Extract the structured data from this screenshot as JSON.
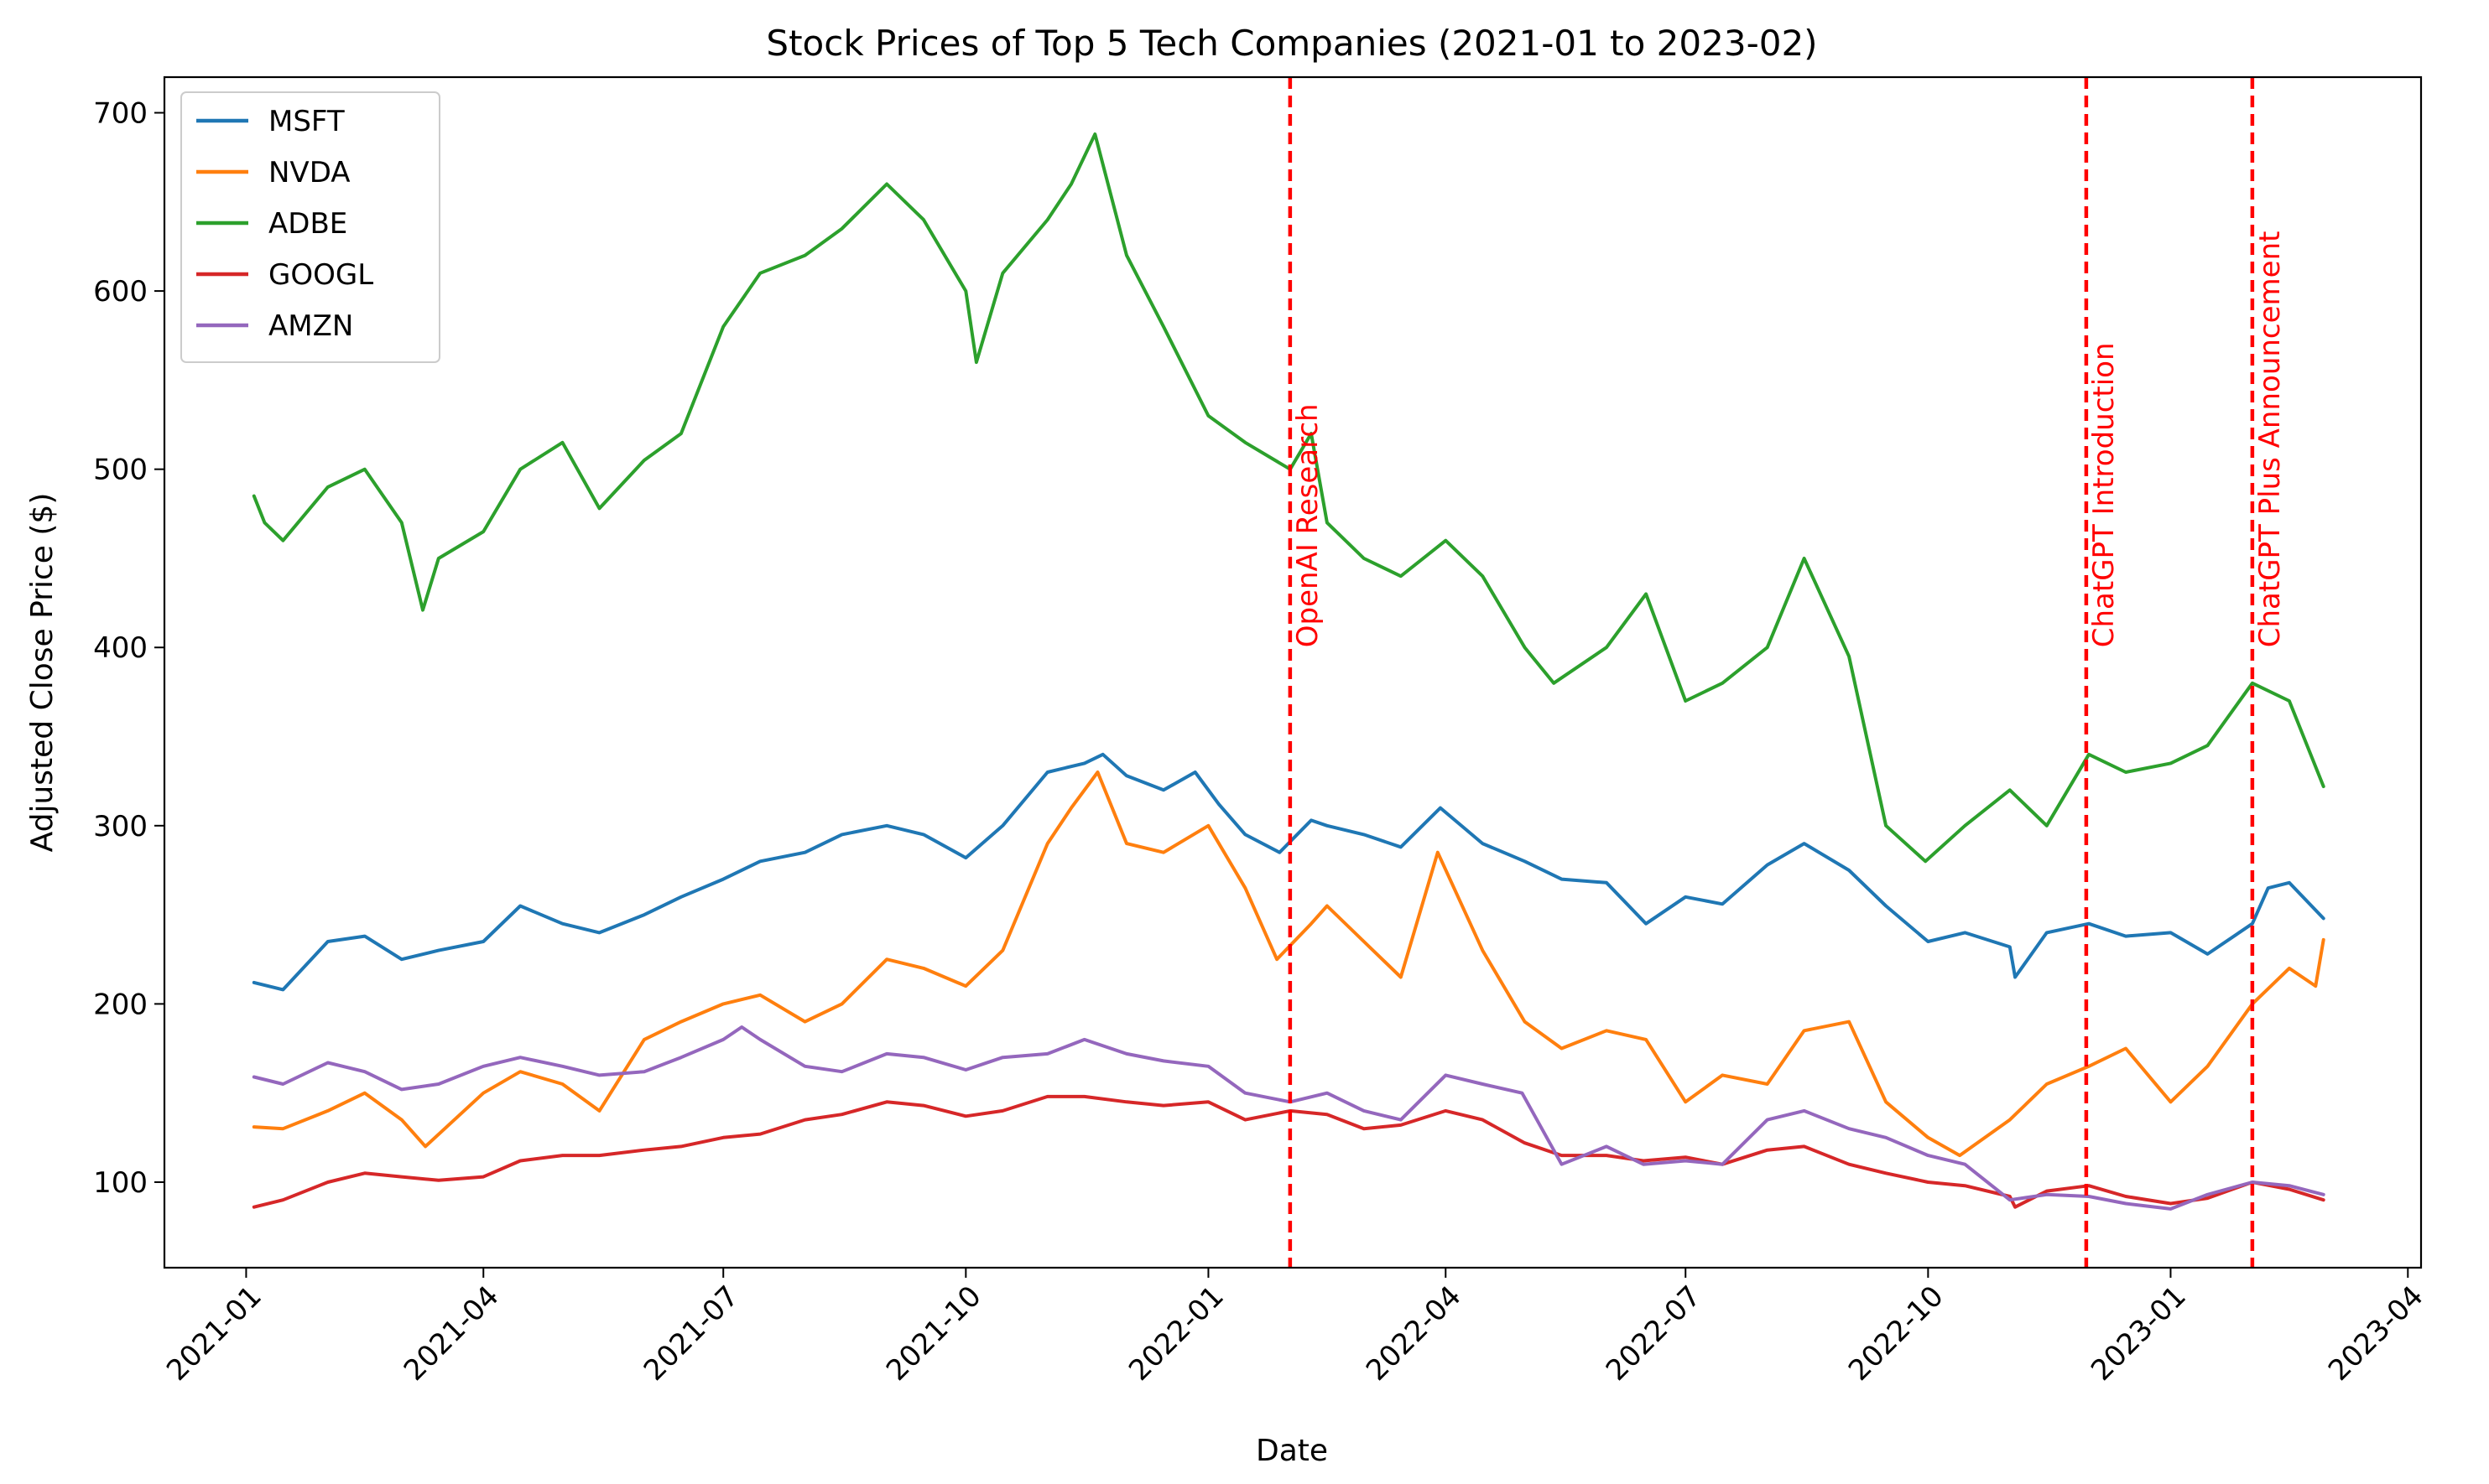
{
  "chart_data": {
    "type": "line",
    "title": "Stock Prices of Top 5 Tech Companies (2021-01 to 2023-02)",
    "xlabel": "Date",
    "ylabel": "Adjusted Close Price ($)",
    "x_axis_type": "date",
    "xlim": [
      "2020-12-01",
      "2023-04-06"
    ],
    "ylim": [
      52,
      720
    ],
    "x_ticks": [
      "2021-01",
      "2021-04",
      "2021-07",
      "2021-10",
      "2022-01",
      "2022-04",
      "2022-07",
      "2022-10",
      "2023-01",
      "2023-04"
    ],
    "x_tick_dates": [
      "2021-01-01",
      "2021-04-01",
      "2021-07-01",
      "2021-10-01",
      "2022-01-01",
      "2022-04-01",
      "2022-07-01",
      "2022-10-01",
      "2023-01-01",
      "2023-04-01"
    ],
    "y_ticks": [
      100,
      200,
      300,
      400,
      500,
      600,
      700
    ],
    "grid": false,
    "legend_position": "top-left",
    "series": [
      {
        "name": "MSFT",
        "color": "#1f77b4",
        "x": [
          "2021-01-04",
          "2021-01-15",
          "2021-02-01",
          "2021-02-15",
          "2021-03-01",
          "2021-03-15",
          "2021-04-01",
          "2021-04-15",
          "2021-05-01",
          "2021-05-15",
          "2021-06-01",
          "2021-06-15",
          "2021-07-01",
          "2021-07-15",
          "2021-08-01",
          "2021-08-15",
          "2021-09-01",
          "2021-09-15",
          "2021-10-01",
          "2021-10-15",
          "2021-11-01",
          "2021-11-15",
          "2021-11-22",
          "2021-12-01",
          "2021-12-15",
          "2021-12-27",
          "2022-01-05",
          "2022-01-15",
          "2022-01-28",
          "2022-02-09",
          "2022-02-15",
          "2022-03-01",
          "2022-03-15",
          "2022-03-30",
          "2022-04-15",
          "2022-05-01",
          "2022-05-15",
          "2022-06-01",
          "2022-06-16",
          "2022-07-01",
          "2022-07-15",
          "2022-08-01",
          "2022-08-15",
          "2022-09-01",
          "2022-09-15",
          "2022-10-01",
          "2022-10-15",
          "2022-11-01",
          "2022-11-03",
          "2022-11-15",
          "2022-12-01",
          "2022-12-15",
          "2023-01-01",
          "2023-01-15",
          "2023-02-01",
          "2023-02-07",
          "2023-02-15",
          "2023-02-28"
        ],
        "values": [
          212,
          208,
          235,
          238,
          225,
          230,
          235,
          255,
          245,
          240,
          250,
          260,
          270,
          280,
          285,
          295,
          300,
          295,
          282,
          300,
          330,
          335,
          340,
          328,
          320,
          330,
          312,
          295,
          285,
          303,
          300,
          295,
          288,
          310,
          290,
          280,
          270,
          268,
          245,
          260,
          256,
          278,
          290,
          275,
          255,
          235,
          240,
          232,
          215,
          240,
          245,
          238,
          240,
          228,
          245,
          265,
          268,
          248
        ]
      },
      {
        "name": "NVDA",
        "color": "#ff7f0e",
        "x": [
          "2021-01-04",
          "2021-01-15",
          "2021-02-01",
          "2021-02-15",
          "2021-03-01",
          "2021-03-10",
          "2021-04-01",
          "2021-04-15",
          "2021-05-01",
          "2021-05-15",
          "2021-06-01",
          "2021-06-15",
          "2021-07-01",
          "2021-07-15",
          "2021-08-01",
          "2021-08-15",
          "2021-09-01",
          "2021-09-15",
          "2021-10-01",
          "2021-10-15",
          "2021-11-01",
          "2021-11-10",
          "2021-11-20",
          "2021-12-01",
          "2021-12-15",
          "2022-01-01",
          "2022-01-15",
          "2022-01-27",
          "2022-02-09",
          "2022-02-15",
          "2022-03-01",
          "2022-03-15",
          "2022-03-29",
          "2022-04-15",
          "2022-05-01",
          "2022-05-15",
          "2022-06-01",
          "2022-06-16",
          "2022-07-01",
          "2022-07-15",
          "2022-08-01",
          "2022-08-15",
          "2022-09-01",
          "2022-09-15",
          "2022-10-01",
          "2022-10-13",
          "2022-11-01",
          "2022-11-15",
          "2022-12-01",
          "2022-12-15",
          "2023-01-01",
          "2023-01-15",
          "2023-02-01",
          "2023-02-15",
          "2023-02-25",
          "2023-02-28"
        ],
        "values": [
          131,
          130,
          140,
          150,
          135,
          120,
          150,
          162,
          155,
          140,
          180,
          190,
          200,
          205,
          190,
          200,
          225,
          220,
          210,
          230,
          290,
          310,
          330,
          290,
          285,
          300,
          265,
          225,
          245,
          255,
          235,
          215,
          285,
          230,
          190,
          175,
          185,
          180,
          145,
          160,
          155,
          185,
          190,
          145,
          125,
          115,
          135,
          155,
          165,
          175,
          145,
          165,
          200,
          220,
          210,
          236
        ]
      },
      {
        "name": "ADBE",
        "color": "#2ca02c",
        "x": [
          "2021-01-04",
          "2021-01-08",
          "2021-01-15",
          "2021-02-01",
          "2021-02-15",
          "2021-03-01",
          "2021-03-09",
          "2021-03-15",
          "2021-04-01",
          "2021-04-15",
          "2021-05-01",
          "2021-05-15",
          "2021-06-01",
          "2021-06-15",
          "2021-07-01",
          "2021-07-15",
          "2021-08-01",
          "2021-08-15",
          "2021-09-01",
          "2021-09-15",
          "2021-10-01",
          "2021-10-05",
          "2021-10-15",
          "2021-11-01",
          "2021-11-10",
          "2021-11-19",
          "2021-12-01",
          "2021-12-15",
          "2022-01-01",
          "2022-01-15",
          "2022-02-01",
          "2022-02-09",
          "2022-02-15",
          "2022-03-01",
          "2022-03-15",
          "2022-04-01",
          "2022-04-15",
          "2022-05-01",
          "2022-05-12",
          "2022-06-01",
          "2022-06-16",
          "2022-07-01",
          "2022-07-15",
          "2022-08-01",
          "2022-08-15",
          "2022-09-01",
          "2022-09-15",
          "2022-09-30",
          "2022-10-15",
          "2022-11-01",
          "2022-11-15",
          "2022-12-01",
          "2022-12-15",
          "2023-01-01",
          "2023-01-15",
          "2023-02-01",
          "2023-02-15",
          "2023-02-28"
        ],
        "values": [
          485,
          470,
          460,
          490,
          500,
          470,
          421,
          450,
          465,
          500,
          515,
          478,
          505,
          520,
          580,
          610,
          620,
          635,
          660,
          640,
          600,
          560,
          610,
          640,
          660,
          688,
          620,
          580,
          530,
          515,
          500,
          520,
          470,
          450,
          440,
          460,
          440,
          400,
          380,
          400,
          430,
          370,
          380,
          400,
          450,
          395,
          300,
          280,
          300,
          320,
          300,
          340,
          330,
          335,
          345,
          380,
          370,
          322
        ]
      },
      {
        "name": "GOOGL",
        "color": "#d62728",
        "x": [
          "2021-01-04",
          "2021-01-15",
          "2021-02-01",
          "2021-02-15",
          "2021-03-01",
          "2021-03-15",
          "2021-04-01",
          "2021-04-15",
          "2021-05-01",
          "2021-05-15",
          "2021-06-01",
          "2021-06-15",
          "2021-07-01",
          "2021-07-15",
          "2021-08-01",
          "2021-08-15",
          "2021-09-01",
          "2021-09-15",
          "2021-10-01",
          "2021-10-15",
          "2021-11-01",
          "2021-11-15",
          "2021-12-01",
          "2021-12-15",
          "2022-01-01",
          "2022-01-15",
          "2022-02-01",
          "2022-02-15",
          "2022-03-01",
          "2022-03-15",
          "2022-04-01",
          "2022-04-15",
          "2022-05-01",
          "2022-05-15",
          "2022-06-01",
          "2022-06-15",
          "2022-07-01",
          "2022-07-15",
          "2022-08-01",
          "2022-08-15",
          "2022-09-01",
          "2022-09-15",
          "2022-10-01",
          "2022-10-15",
          "2022-11-01",
          "2022-11-03",
          "2022-11-15",
          "2022-12-01",
          "2022-12-15",
          "2023-01-01",
          "2023-01-15",
          "2023-02-01",
          "2023-02-15",
          "2023-02-28"
        ],
        "values": [
          86,
          90,
          100,
          105,
          103,
          101,
          103,
          112,
          115,
          115,
          118,
          120,
          125,
          127,
          135,
          138,
          145,
          143,
          137,
          140,
          148,
          148,
          145,
          143,
          145,
          135,
          140,
          138,
          130,
          132,
          140,
          135,
          122,
          115,
          115,
          112,
          114,
          110,
          118,
          120,
          110,
          105,
          100,
          98,
          92,
          86,
          95,
          98,
          92,
          88,
          91,
          100,
          96,
          90
        ]
      },
      {
        "name": "AMZN",
        "color": "#9467bd",
        "x": [
          "2021-01-04",
          "2021-01-15",
          "2021-02-01",
          "2021-02-15",
          "2021-03-01",
          "2021-03-15",
          "2021-04-01",
          "2021-04-15",
          "2021-05-01",
          "2021-05-15",
          "2021-06-01",
          "2021-06-15",
          "2021-07-01",
          "2021-07-08",
          "2021-07-15",
          "2021-08-01",
          "2021-08-15",
          "2021-09-01",
          "2021-09-15",
          "2021-10-01",
          "2021-10-15",
          "2021-11-01",
          "2021-11-15",
          "2021-12-01",
          "2021-12-15",
          "2022-01-01",
          "2022-01-15",
          "2022-02-01",
          "2022-02-15",
          "2022-03-01",
          "2022-03-15",
          "2022-04-01",
          "2022-04-15",
          "2022-04-30",
          "2022-05-15",
          "2022-06-01",
          "2022-06-15",
          "2022-07-01",
          "2022-07-15",
          "2022-08-01",
          "2022-08-15",
          "2022-09-01",
          "2022-09-15",
          "2022-10-01",
          "2022-10-15",
          "2022-11-01",
          "2022-11-15",
          "2022-12-01",
          "2022-12-15",
          "2023-01-01",
          "2023-01-15",
          "2023-02-01",
          "2023-02-15",
          "2023-02-28"
        ],
        "values": [
          159,
          155,
          167,
          162,
          152,
          155,
          165,
          170,
          165,
          160,
          162,
          170,
          180,
          187,
          180,
          165,
          162,
          172,
          170,
          163,
          170,
          172,
          180,
          172,
          168,
          165,
          150,
          145,
          150,
          140,
          135,
          160,
          155,
          150,
          110,
          120,
          110,
          112,
          110,
          135,
          140,
          130,
          125,
          115,
          110,
          90,
          93,
          92,
          88,
          85,
          93,
          100,
          98,
          93
        ]
      }
    ],
    "annotations": [
      {
        "label": "OpenAI Research",
        "date": "2022-02-01",
        "color": "#ff0000",
        "style": "dashed"
      },
      {
        "label": "ChatGPT Introduction",
        "date": "2022-11-30",
        "color": "#ff0000",
        "style": "dashed"
      },
      {
        "label": "ChatGPT Plus Announcement",
        "date": "2023-02-01",
        "color": "#ff0000",
        "style": "dashed"
      }
    ]
  }
}
